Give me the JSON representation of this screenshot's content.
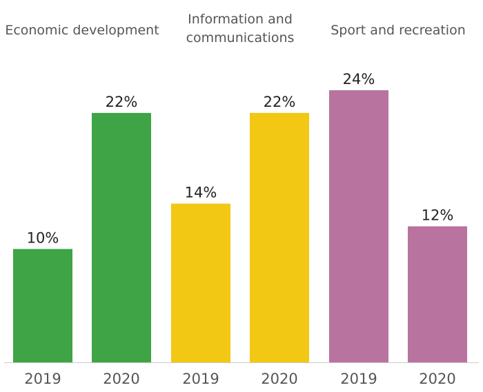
{
  "chart_data": {
    "type": "bar",
    "title": "",
    "xlabel": "",
    "ylabel": "",
    "ylim": [
      0,
      24
    ],
    "value_suffix": "%",
    "groups": [
      {
        "name": "Economic development",
        "title_lines": [
          "Economic development"
        ],
        "color": "#3fa445",
        "bars": [
          {
            "category": "2019",
            "value": 10,
            "label": "10%"
          },
          {
            "category": "2020",
            "value": 22,
            "label": "22%"
          }
        ]
      },
      {
        "name": "Information and communications",
        "title_lines": [
          "Information and",
          "communications"
        ],
        "color": "#f2c814",
        "bars": [
          {
            "category": "2019",
            "value": 14,
            "label": "14%"
          },
          {
            "category": "2020",
            "value": 22,
            "label": "22%"
          }
        ]
      },
      {
        "name": "Sport and recreation",
        "title_lines": [
          "Sport and recreation"
        ],
        "color": "#b8739f",
        "bars": [
          {
            "category": "2019",
            "value": 24,
            "label": "24%"
          },
          {
            "category": "2020",
            "value": 12,
            "label": "12%"
          }
        ]
      }
    ]
  },
  "colors": {
    "axis": "#cccccc"
  }
}
